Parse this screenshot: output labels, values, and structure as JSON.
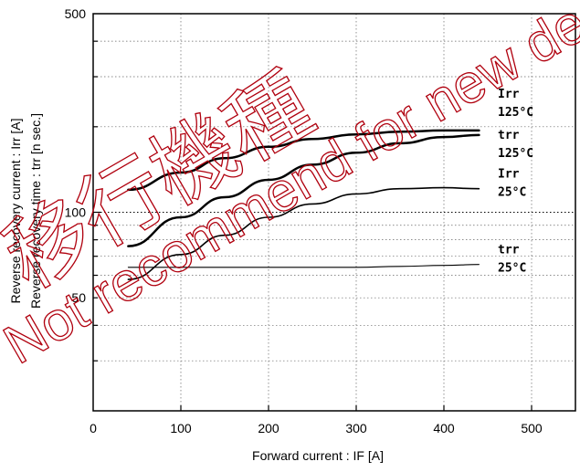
{
  "chart_data": {
    "type": "line",
    "title": "",
    "xlabel": "Forward current  :  IF [A]",
    "ylabels": [
      "Reverse recovery current  :  Irr [A]",
      "Reverse recovery time  :  trr [n sec.]"
    ],
    "x_ticks": [
      "0",
      "100",
      "200",
      "300",
      "400",
      "500"
    ],
    "y_ticks": [
      "50",
      "100",
      "500"
    ],
    "xlim": [
      0,
      550
    ],
    "ylim": [
      20,
      500
    ],
    "y_scale": "log",
    "grid": "dotted",
    "legend": "inline labels at right end of each curve",
    "series": [
      {
        "label_lines": [
          "Irr",
          "125°C"
        ],
        "x": [
          40,
          100,
          150,
          200,
          250,
          300,
          350,
          400,
          440
        ],
        "y": [
          120,
          138,
          155,
          170,
          181,
          188,
          192,
          194,
          194
        ],
        "width": 2.5
      },
      {
        "label_lines": [
          "trr",
          "125°C"
        ],
        "x": [
          40,
          100,
          150,
          200,
          250,
          300,
          350,
          400,
          440
        ],
        "y": [
          76,
          96,
          113,
          130,
          147,
          162,
          175,
          184,
          187
        ],
        "width": 2.5
      },
      {
        "label_lines": [
          "Irr",
          "25°C"
        ],
        "x": [
          40,
          100,
          150,
          200,
          250,
          300,
          350,
          400,
          440
        ],
        "y": [
          58,
          71,
          83,
          96,
          107,
          116,
          121,
          122,
          121
        ],
        "width": 1.6
      },
      {
        "label_lines": [
          "trr",
          "25°C"
        ],
        "x": [
          40,
          100,
          150,
          200,
          250,
          300,
          350,
          400,
          440
        ],
        "y": [
          64,
          64,
          64,
          64,
          64,
          64,
          64.5,
          65,
          65.5
        ],
        "width": 1.1
      }
    ]
  },
  "watermark": {
    "line1": "移行機種",
    "line2": "Not recommend for new design."
  }
}
